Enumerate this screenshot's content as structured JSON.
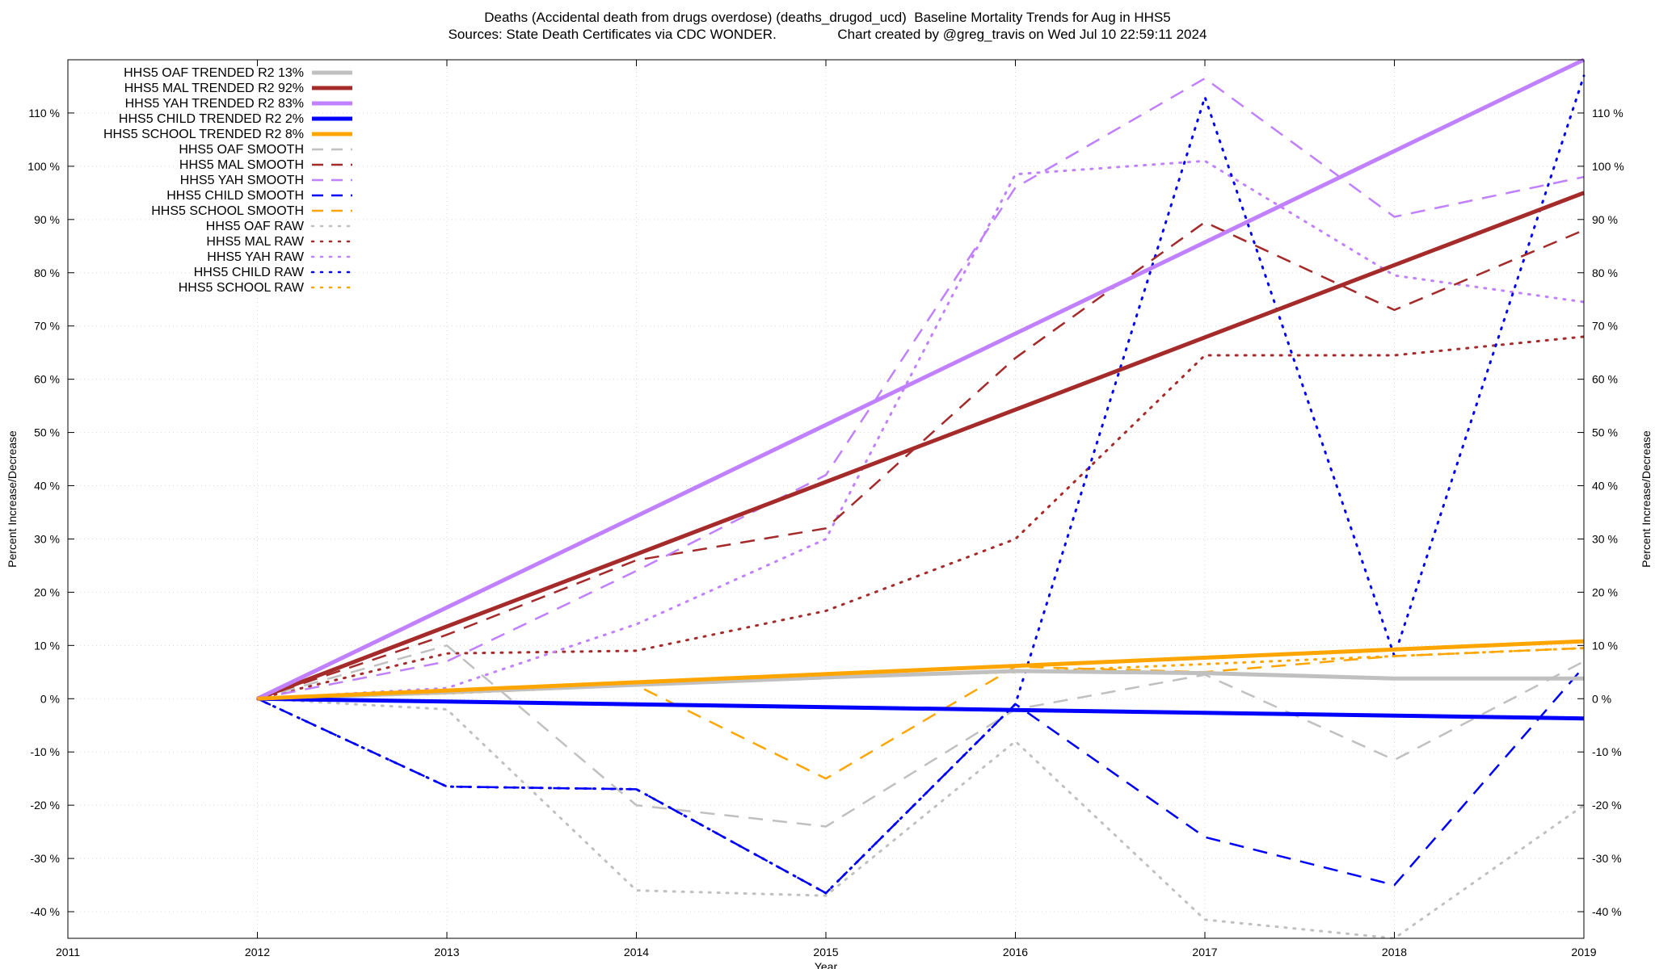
{
  "title_line1": "Deaths (Accidental death from drugs overdose) (deaths_drugod_ucd)  Baseline Mortality Trends for Aug in HHS5",
  "title_line2": "Sources: State Death Certificates via CDC WONDER.                Chart created by @greg_travis on Wed Jul 10 22:59:11 2024",
  "chart_data": {
    "type": "line",
    "xlabel": "Year",
    "ylabel": "Percent Increase/Decrease",
    "y2label": "Percent Increase/Decrease",
    "xlim": [
      2011,
      2019
    ],
    "ylim": [
      -45,
      120
    ],
    "x_ticks": [
      2011,
      2012,
      2013,
      2014,
      2015,
      2016,
      2017,
      2018,
      2019
    ],
    "y_ticks": [
      -40,
      -30,
      -20,
      -10,
      0,
      10,
      20,
      30,
      40,
      50,
      60,
      70,
      80,
      90,
      100,
      110
    ],
    "y_tick_suffix": " %",
    "grid": true,
    "legend_position": "top-left",
    "series": [
      {
        "name": "HHS5 OAF TRENDED R2  13%",
        "style": "solid",
        "color": "#c0c0c0",
        "x": [
          2012,
          2013,
          2014,
          2015,
          2016,
          2017,
          2018,
          2019
        ],
        "values": [
          0,
          1.2,
          2.6,
          4.0,
          5.2,
          4.8,
          3.8,
          3.8
        ]
      },
      {
        "name": "HHS5 MAL TRENDED R2  92%",
        "style": "solid",
        "color": "#a52a2a",
        "x": [
          2012,
          2019
        ],
        "values": [
          0,
          95
        ]
      },
      {
        "name": "HHS5 YAH TRENDED R2  83%",
        "style": "solid",
        "color": "#c080ff",
        "x": [
          2012,
          2019
        ],
        "values": [
          0,
          120
        ]
      },
      {
        "name": "HHS5 CHILD TRENDED R2   2%",
        "style": "solid",
        "color": "#0000ff",
        "x": [
          2012,
          2019
        ],
        "values": [
          0,
          -3.7
        ]
      },
      {
        "name": "HHS5 SCHOOL TRENDED R2   8%",
        "style": "solid",
        "color": "#ffa500",
        "x": [
          2012,
          2019
        ],
        "values": [
          0,
          10.8
        ]
      },
      {
        "name": "HHS5 OAF SMOOTH",
        "style": "dashed",
        "color": "#c0c0c0",
        "x": [
          2012,
          2013,
          2014,
          2015,
          2016,
          2017,
          2018,
          2019
        ],
        "values": [
          0,
          10,
          -20,
          -24,
          -2,
          4.5,
          -11.5,
          7
        ]
      },
      {
        "name": "HHS5 MAL SMOOTH",
        "style": "dashed",
        "color": "#a52a2a",
        "x": [
          2012,
          2013,
          2014,
          2015,
          2016,
          2017,
          2018,
          2019
        ],
        "values": [
          0,
          12,
          26,
          32,
          64,
          89.5,
          73,
          88
        ]
      },
      {
        "name": "HHS5 YAH SMOOTH",
        "style": "dashed",
        "color": "#c080ff",
        "x": [
          2012,
          2013,
          2014,
          2015,
          2016,
          2017,
          2018,
          2019
        ],
        "values": [
          0,
          7,
          24,
          42,
          96,
          116.5,
          90.5,
          98
        ]
      },
      {
        "name": "HHS5 CHILD SMOOTH",
        "style": "dashed",
        "color": "#0000ff",
        "x": [
          2012,
          2013,
          2014,
          2015,
          2016,
          2017,
          2018,
          2019
        ],
        "values": [
          0,
          -16.5,
          -17,
          -36.5,
          -1,
          -26,
          -35,
          6
        ]
      },
      {
        "name": "HHS5 SCHOOL SMOOTH",
        "style": "dashed",
        "color": "#ffa500",
        "x": [
          2012,
          2013,
          2014,
          2015,
          2016,
          2017,
          2018,
          2019
        ],
        "values": [
          0,
          1,
          2.5,
          -15,
          6,
          5,
          8,
          9.5
        ]
      },
      {
        "name": "HHS5 OAF RAW",
        "style": "dotted",
        "color": "#c0c0c0",
        "x": [
          2012,
          2013,
          2014,
          2015,
          2016,
          2017,
          2018,
          2019
        ],
        "values": [
          0,
          -2,
          -36,
          -37,
          -8,
          -41.5,
          -45,
          -20
        ]
      },
      {
        "name": "HHS5 MAL RAW",
        "style": "dotted",
        "color": "#a52a2a",
        "x": [
          2012,
          2013,
          2014,
          2015,
          2016,
          2017,
          2018,
          2019
        ],
        "values": [
          0,
          8.5,
          9,
          16.5,
          30,
          64.5,
          64.5,
          68
        ]
      },
      {
        "name": "HHS5 YAH RAW",
        "style": "dotted",
        "color": "#c080ff",
        "x": [
          2012,
          2013,
          2014,
          2015,
          2016,
          2017,
          2018,
          2019
        ],
        "values": [
          0,
          2,
          14,
          30,
          98.5,
          101,
          79.5,
          74.5
        ]
      },
      {
        "name": "HHS5 CHILD RAW",
        "style": "dotted",
        "color": "#0000ff",
        "x": [
          2012,
          2013,
          2014,
          2015,
          2016,
          2017,
          2018,
          2019
        ],
        "values": [
          0,
          -16.5,
          -17,
          -36.5,
          -1,
          113,
          8,
          117
        ]
      },
      {
        "name": "HHS5 SCHOOL RAW",
        "style": "dotted",
        "color": "#ffa500",
        "x": [
          2012,
          2013,
          2014,
          2015,
          2016,
          2017,
          2018,
          2019
        ],
        "values": [
          0,
          1,
          2.5,
          4,
          5,
          6.5,
          8,
          9.5
        ]
      }
    ]
  }
}
